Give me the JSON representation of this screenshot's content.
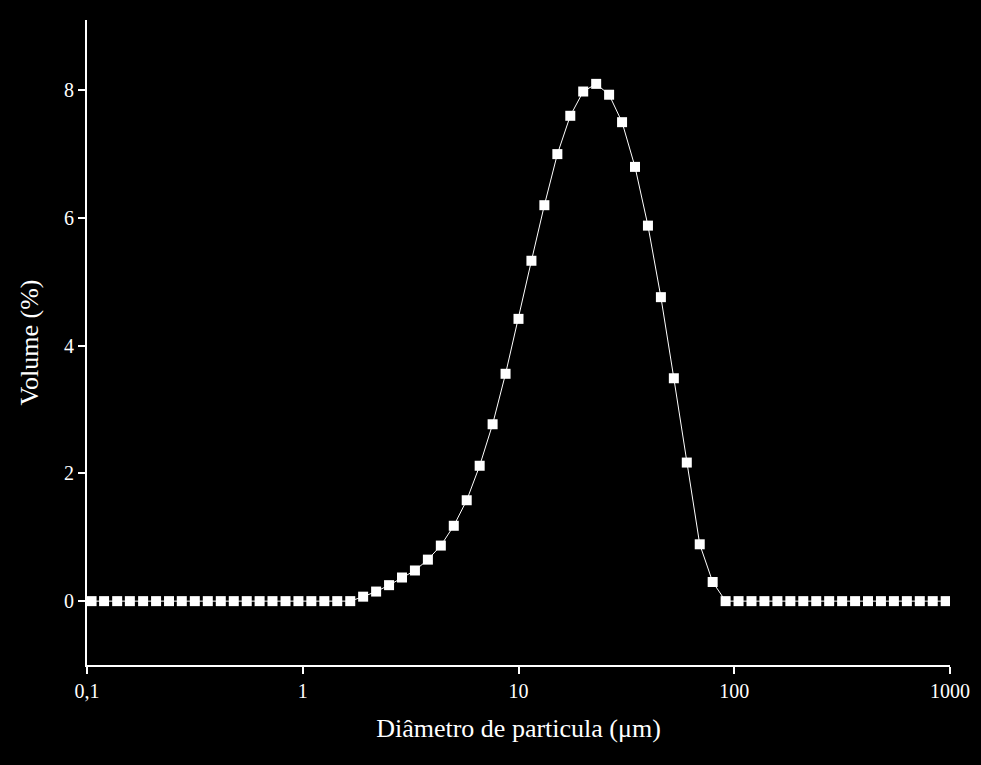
{
  "chart_data": {
    "type": "line",
    "x_label": "Diâmetro de particula (μm)",
    "y_label": "Volume (%)",
    "x": [
      0.105,
      0.12,
      0.138,
      0.158,
      0.182,
      0.209,
      0.24,
      0.275,
      0.316,
      0.363,
      0.417,
      0.479,
      0.55,
      0.631,
      0.724,
      0.832,
      0.955,
      1.096,
      1.259,
      1.445,
      1.66,
      1.905,
      2.188,
      2.512,
      2.884,
      3.311,
      3.802,
      4.365,
      5.012,
      5.754,
      6.607,
      7.586,
      8.71,
      10.0,
      11.48,
      13.18,
      15.14,
      17.38,
      19.95,
      22.91,
      26.3,
      30.2,
      34.67,
      39.81,
      45.71,
      52.48,
      60.26,
      69.18,
      79.43,
      91.2,
      104.7,
      120.2,
      138.0,
      158.5,
      182.0,
      208.9,
      239.9,
      275.4,
      316.2,
      363.1,
      416.9,
      478.6,
      549.5,
      631.0,
      724.4,
      831.8,
      955.0
    ],
    "values": [
      0,
      0,
      0,
      0,
      0,
      0,
      0,
      0,
      0,
      0,
      0,
      0,
      0,
      0,
      0,
      0,
      0,
      0,
      0,
      0,
      0,
      0.07,
      0.15,
      0.25,
      0.37,
      0.48,
      0.65,
      0.87,
      1.18,
      1.58,
      2.12,
      2.77,
      3.56,
      4.42,
      5.33,
      6.2,
      7.0,
      7.6,
      7.98,
      8.1,
      7.93,
      7.5,
      6.8,
      5.88,
      4.76,
      3.49,
      2.17,
      0.89,
      0.3,
      0,
      0,
      0,
      0,
      0,
      0,
      0,
      0,
      0,
      0,
      0,
      0,
      0,
      0,
      0,
      0,
      0,
      0
    ],
    "color": "#ffffff",
    "marker": "square",
    "line_style": "solid",
    "log": "x",
    "grid": false,
    "xlim": [
      0.1,
      1000
    ],
    "xticks": [
      {
        "value": 0.1,
        "label": "0,1"
      },
      1,
      10,
      100,
      1000
    ],
    "ylim": [
      -1,
      9.1
    ],
    "yticks": [
      0,
      2,
      4,
      6,
      8
    ]
  }
}
